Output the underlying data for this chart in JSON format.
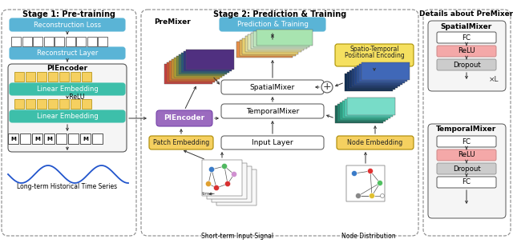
{
  "title_stage1": "Stage 1: Pre-training",
  "title_stage2": "Stage 2: Prediction & Training",
  "title_details": "Details about PreMixer",
  "bg_color": "#ffffff",
  "blue_color": "#5ab4d6",
  "teal_color": "#3dbfaa",
  "yellow_color": "#f5d060",
  "purple_color": "#9b6bbf",
  "pink_color": "#f4a8a8",
  "gray_color": "#cccccc",
  "rainbow": [
    "#c8453a",
    "#c8603a",
    "#c88c3a",
    "#c8b03a",
    "#a0b840",
    "#60a850",
    "#3090a0",
    "#286898",
    "#6050a0",
    "#8050a0"
  ],
  "output_tensor": [
    "#4ab8a0",
    "#6cc890",
    "#88d870",
    "#a0e060",
    "#c8e858",
    "#e8e850",
    "#e8c850",
    "#e8a058",
    "#d07060",
    "#b05870"
  ],
  "st_tensor": [
    "#1a3a5a",
    "#1e4a6a",
    "#22587a",
    "#266890",
    "#2a78a8",
    "#3090c0",
    "#40a8d0",
    "#58c0e0"
  ],
  "teal_tensor": [
    "#2a8870",
    "#3aaa88",
    "#4abca0",
    "#5ad0b8",
    "#70e0c8",
    "#90e8d8"
  ],
  "node_colors_signal": [
    "#3a7bc8",
    "#d83030",
    "#d83030",
    "#e0a030",
    "#e0a030",
    "#888888",
    "#888888",
    "#50b860",
    "#c070c0"
  ],
  "node_colors_dist": [
    "#3a7bc8",
    "#e03838",
    "#50b860",
    "#e0c030",
    "#888888"
  ]
}
